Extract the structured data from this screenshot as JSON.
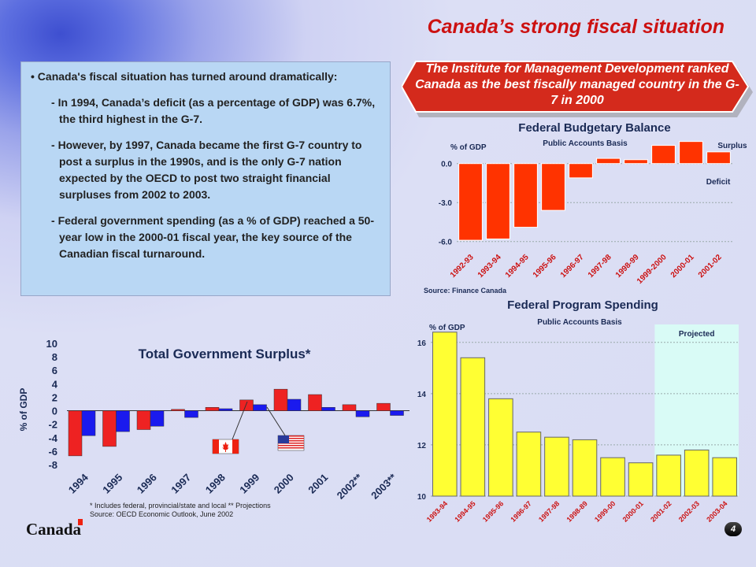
{
  "slide": {
    "title": "Canada’s strong fiscal situation",
    "page_number": "4",
    "wordmark": "Canada"
  },
  "textbox": {
    "bullet": "Canada's fiscal situation has turned around dramatically:",
    "subpoints": [
      "In 1994, Canada’s deficit (as a percentage of GDP) was 6.7%, the third highest in the G-7.",
      "However, by 1997, Canada became the first G-7 country to post a surplus in the 1990s, and is the only G-7 nation expected by the OECD to post two straight financial surpluses from 2002 to 2003.",
      "Federal government spending (as a % of GDP) reached a 50-year low in the 2000-01 fiscal year, the key source of the Canadian fiscal turnaround."
    ]
  },
  "banner": {
    "text": "The Institute for Management Development ranked Canada as the best fiscally managed country in the G-7 in 2000",
    "color": "#d42a1c"
  },
  "footnotes": {
    "line1": "* Includes federal, provincial/state and local    ** Projections",
    "line2": "Source: OECD Economic Outlook, June 2002"
  },
  "chart_data": [
    {
      "id": "budgetary",
      "type": "bar",
      "title": "Federal Budgetary Balance",
      "subtitle": "Public Accounts Basis",
      "ylabel": "% of GDP",
      "source": "Source: Finance Canada",
      "legend": [
        "Surplus",
        "+",
        "Deficit"
      ],
      "ylim": [
        -6.5,
        1.8
      ],
      "yticks": [
        "0.0",
        "-3.0",
        "-6.0"
      ],
      "ytick_values": [
        0,
        -3,
        -6
      ],
      "categories": [
        "1992-93",
        "1993-94",
        "1994-95",
        "1995-96",
        "1996-97",
        "1997-98",
        "1998-99",
        "1999-2000",
        "2000-01",
        "2001-02"
      ],
      "values": [
        -5.9,
        -5.8,
        -4.9,
        -3.6,
        -1.1,
        0.4,
        0.3,
        1.4,
        1.7,
        0.9
      ],
      "color": "#ff3300"
    },
    {
      "id": "spending",
      "type": "bar",
      "title": "Federal Program Spending",
      "subtitle": "Public Accounts Basis",
      "ylabel": "% of GDP",
      "band_label": "Projected",
      "ylim": [
        10,
        16.7
      ],
      "yticks": [
        "16",
        "14",
        "12",
        "10"
      ],
      "ytick_values": [
        16,
        14,
        12,
        10
      ],
      "categories": [
        "1993-94",
        "1994-95",
        "1995-96",
        "1996-97",
        "1997-98",
        "1998-89",
        "1999-00",
        "2000-01",
        "2001-02",
        "2002-03",
        "2003-04"
      ],
      "values": [
        16.4,
        15.4,
        13.8,
        12.5,
        12.3,
        12.2,
        11.5,
        11.3,
        11.6,
        11.8,
        11.5
      ],
      "projected_from_index": 8,
      "color": "#ffff33",
      "band_color": "#d9fbf6"
    },
    {
      "id": "surplus",
      "type": "bar",
      "title": "Total Government Surplus*",
      "ylabel": "% of GDP",
      "ylim": [
        -8,
        10
      ],
      "yticks": [
        "10",
        "8",
        "6",
        "4",
        "2",
        "0",
        "-2",
        "-4",
        "-6",
        "-8"
      ],
      "ytick_values": [
        10,
        8,
        6,
        4,
        2,
        0,
        -2,
        -4,
        -6,
        -8
      ],
      "categories": [
        "1994",
        "1995",
        "1996",
        "1997",
        "1998",
        "1999",
        "2000",
        "2001",
        "2002**",
        "2003**"
      ],
      "series": [
        {
          "name": "Canada",
          "values": [
            -6.7,
            -5.3,
            -2.8,
            0.2,
            0.5,
            1.6,
            3.2,
            2.4,
            0.9,
            1.1
          ],
          "color": "#ee2222"
        },
        {
          "name": "United States",
          "values": [
            -3.7,
            -3.1,
            -2.3,
            -1.0,
            0.3,
            0.9,
            1.7,
            0.5,
            -0.9,
            -0.7
          ],
          "color": "#1a1aee"
        }
      ]
    }
  ]
}
